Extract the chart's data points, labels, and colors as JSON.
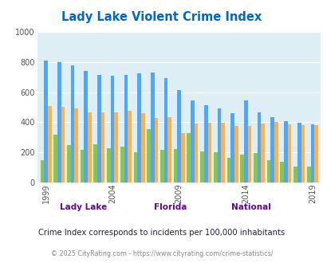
{
  "title": "Lady Lake Violent Crime Index",
  "subtitle": "Crime Index corresponds to incidents per 100,000 inhabitants",
  "footer": "© 2025 CityRating.com - https://www.cityrating.com/crime-statistics/",
  "years": [
    1999,
    2000,
    2001,
    2002,
    2003,
    2004,
    2005,
    2006,
    2007,
    2008,
    2009,
    2010,
    2011,
    2012,
    2013,
    2014,
    2015,
    2016,
    2017,
    2018,
    2019
  ],
  "lady_lake": [
    150,
    320,
    248,
    220,
    253,
    228,
    240,
    204,
    355,
    220,
    225,
    330,
    207,
    204,
    167,
    188,
    196,
    150,
    140,
    107,
    107
  ],
  "florida": [
    810,
    800,
    775,
    738,
    713,
    710,
    714,
    724,
    727,
    692,
    612,
    544,
    514,
    492,
    459,
    547,
    465,
    434,
    408,
    395,
    385
  ],
  "national": [
    507,
    502,
    494,
    467,
    463,
    466,
    477,
    459,
    429,
    433,
    328,
    392,
    396,
    398,
    375,
    378,
    394,
    402,
    387,
    382,
    379
  ],
  "bar_colors": {
    "lady_lake": "#8dc63f",
    "florida": "#4da6ff",
    "national": "#ffb347"
  },
  "ylim": [
    0,
    1000
  ],
  "yticks": [
    0,
    200,
    400,
    600,
    800,
    1000
  ],
  "background_color": "#ddeef5",
  "title_color": "#0066cc",
  "legend_label_color": "#660099",
  "subtitle_color": "#222244",
  "footer_color": "#888888",
  "grid_color": "#ffffff",
  "tick_label_years": [
    1999,
    2004,
    2009,
    2014,
    2019
  ]
}
